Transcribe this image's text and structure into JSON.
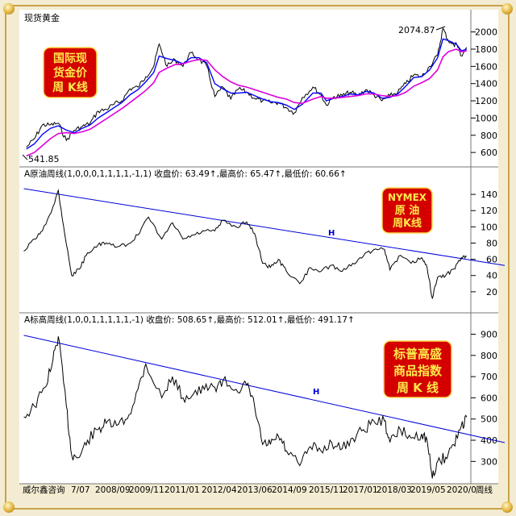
{
  "panels": [
    {
      "id": "gold",
      "header": "现货黄金",
      "badge_lines": [
        "国际现",
        "货金价",
        "周 K线"
      ],
      "badge_bg": "#d40000",
      "y_ticks": [
        600,
        800,
        1000,
        1200,
        1400,
        1600,
        1800,
        2000
      ],
      "ylim": [
        470,
        2090
      ],
      "high_label": "2074.87",
      "low_label": "541.85",
      "colors": {
        "price": "#000000",
        "ma_short": "#0000ff",
        "ma_long": "#dd00dd"
      }
    },
    {
      "id": "crude",
      "header": "A原油周线(1,0,0,0,1,1,1,1,-1,1) 收盘价: 63.49↑,最高价: 65.47↑,最低价: 60.66↑",
      "badge_lines": [
        "NYMEX",
        "原 油",
        "周K线"
      ],
      "badge_bg": "#d40000",
      "y_ticks": [
        20,
        40,
        60,
        80,
        100,
        120,
        140
      ],
      "ylim": [
        0,
        155
      ],
      "trend_label": "H",
      "colors": {
        "price": "#000000",
        "trend": "#0000dd"
      }
    },
    {
      "id": "gsci",
      "header": "A标高周线(1,0,0,1,1,1,1,1,-1) 收盘价: 508.65↑,最高价: 512.01↑,最低价: 491.17↑",
      "badge_lines": [
        "标普高盛",
        "商品指数",
        "周  K 线"
      ],
      "badge_bg": "#d40000",
      "y_ticks": [
        300,
        400,
        500,
        600,
        700,
        800,
        900
      ],
      "ylim": [
        210,
        940
      ],
      "trend_label": "H",
      "colors": {
        "price": "#000000",
        "trend": "#0000dd"
      }
    }
  ],
  "footer": {
    "source": "威尔鑫咨询",
    "x_labels": [
      "7/07",
      "2008/09",
      "2009/11",
      "2011/01",
      "2012/04",
      "2013/06",
      "2014/09",
      "2015/11",
      "2017/01",
      "2018/03",
      "2019/05",
      "2020/0",
      "周线"
    ]
  },
  "chart_data": [
    {
      "type": "line",
      "title": "现货黄金",
      "series": [],
      "x": [
        "2007-07",
        "2007-10",
        "2008-01",
        "2008-04",
        "2008-07",
        "2008-10",
        "2009-01",
        "2009-04",
        "2009-07",
        "2009-10",
        "2010-01",
        "2010-04",
        "2010-07",
        "2010-10",
        "2011-01",
        "2011-04",
        "2011-07",
        "2011-09",
        "2011-12",
        "2012-03",
        "2012-06",
        "2012-09",
        "2012-12",
        "2013-03",
        "2013-06",
        "2013-09",
        "2013-12",
        "2014-03",
        "2014-06",
        "2014-09",
        "2014-12",
        "2015-03",
        "2015-06",
        "2015-09",
        "2015-12",
        "2016-03",
        "2016-07",
        "2016-10",
        "2016-12",
        "2017-03",
        "2017-06",
        "2017-09",
        "2017-12",
        "2018-03",
        "2018-06",
        "2018-09",
        "2018-12",
        "2019-03",
        "2019-06",
        "2019-09",
        "2019-12",
        "2020-03",
        "2020-06",
        "2020-08",
        "2020-10",
        "2020-12",
        "2021-01",
        "2021-03",
        "2021-05"
      ],
      "price": [
        660,
        760,
        920,
        920,
        940,
        740,
        860,
        900,
        940,
        1080,
        1100,
        1160,
        1200,
        1340,
        1360,
        1480,
        1600,
        1860,
        1600,
        1680,
        1600,
        1760,
        1680,
        1600,
        1250,
        1360,
        1220,
        1340,
        1300,
        1230,
        1200,
        1180,
        1180,
        1120,
        1060,
        1240,
        1360,
        1270,
        1150,
        1250,
        1260,
        1300,
        1260,
        1330,
        1270,
        1200,
        1260,
        1300,
        1400,
        1500,
        1480,
        1600,
        1730,
        2040,
        1900,
        1850,
        1870,
        1720,
        1820
      ],
      "ma_short": [
        640,
        700,
        810,
        880,
        910,
        860,
        830,
        880,
        920,
        1000,
        1060,
        1120,
        1180,
        1270,
        1330,
        1420,
        1530,
        1720,
        1690,
        1670,
        1630,
        1700,
        1700,
        1640,
        1400,
        1340,
        1290,
        1290,
        1300,
        1260,
        1220,
        1190,
        1180,
        1150,
        1100,
        1160,
        1290,
        1290,
        1200,
        1230,
        1250,
        1280,
        1270,
        1310,
        1290,
        1230,
        1240,
        1280,
        1370,
        1470,
        1480,
        1560,
        1700,
        1920,
        1900,
        1870,
        1860,
        1780,
        1800
      ],
      "ma_long": [
        560,
        600,
        680,
        760,
        820,
        830,
        820,
        840,
        870,
        930,
        990,
        1050,
        1110,
        1180,
        1250,
        1320,
        1410,
        1530,
        1580,
        1620,
        1630,
        1660,
        1680,
        1670,
        1560,
        1480,
        1420,
        1380,
        1360,
        1330,
        1300,
        1270,
        1240,
        1220,
        1180,
        1170,
        1220,
        1250,
        1230,
        1230,
        1240,
        1250,
        1260,
        1280,
        1280,
        1260,
        1250,
        1260,
        1300,
        1370,
        1410,
        1460,
        1560,
        1710,
        1770,
        1790,
        1800,
        1770,
        1780
      ],
      "ylim": [
        470,
        2090
      ],
      "annotations": [
        "2074.87",
        "541.85"
      ]
    },
    {
      "type": "line",
      "title": "A原油周线",
      "series": [],
      "x": [
        "2007-06",
        "2007-10",
        "2008-01",
        "2008-05",
        "2008-07",
        "2008-09",
        "2008-12",
        "2009-03",
        "2009-06",
        "2009-10",
        "2010-01",
        "2010-05",
        "2010-09",
        "2011-01",
        "2011-05",
        "2011-10",
        "2012-02",
        "2012-06",
        "2012-10",
        "2013-02",
        "2013-06",
        "2013-09",
        "2014-02",
        "2014-06",
        "2014-09",
        "2014-12",
        "2015-03",
        "2015-06",
        "2015-09",
        "2016-02",
        "2016-06",
        "2016-10",
        "2017-02",
        "2017-06",
        "2017-10",
        "2018-02",
        "2018-06",
        "2018-10",
        "2018-12",
        "2019-04",
        "2019-08",
        "2019-12",
        "2020-02",
        "2020-04",
        "2020-06",
        "2020-09",
        "2020-12",
        "2021-03",
        "2021-05"
      ],
      "price": [
        70,
        85,
        95,
        125,
        145,
        100,
        40,
        48,
        68,
        78,
        80,
        75,
        78,
        90,
        112,
        85,
        105,
        85,
        90,
        95,
        95,
        108,
        100,
        106,
        92,
        55,
        50,
        60,
        45,
        30,
        50,
        45,
        53,
        45,
        55,
        64,
        72,
        72,
        47,
        65,
        55,
        62,
        50,
        12,
        38,
        40,
        48,
        62,
        63.49
      ],
      "trend": {
        "x": [
          "2007-06",
          "2021-05"
        ],
        "y": [
          147,
          58
        ]
      },
      "ylim": [
        0,
        155
      ]
    },
    {
      "type": "line",
      "title": "A标高周线",
      "series": [],
      "x": [
        "2007-06",
        "2007-10",
        "2008-02",
        "2008-05",
        "2008-07",
        "2008-10",
        "2008-12",
        "2009-03",
        "2009-06",
        "2009-10",
        "2010-01",
        "2010-05",
        "2010-09",
        "2011-01",
        "2011-04",
        "2011-10",
        "2012-02",
        "2012-06",
        "2012-10",
        "2013-02",
        "2013-06",
        "2013-09",
        "2014-02",
        "2014-06",
        "2014-09",
        "2014-12",
        "2015-03",
        "2015-06",
        "2015-09",
        "2016-02",
        "2016-06",
        "2016-10",
        "2017-02",
        "2017-06",
        "2017-10",
        "2018-02",
        "2018-06",
        "2018-10",
        "2018-12",
        "2019-04",
        "2019-08",
        "2019-12",
        "2020-02",
        "2020-04",
        "2020-06",
        "2020-09",
        "2020-12",
        "2021-03",
        "2021-05"
      ],
      "price": [
        510,
        560,
        650,
        780,
        890,
        560,
        330,
        320,
        400,
        450,
        480,
        470,
        500,
        640,
        760,
        600,
        700,
        600,
        620,
        640,
        650,
        680,
        640,
        660,
        560,
        380,
        380,
        420,
        350,
        280,
        370,
        350,
        390,
        360,
        410,
        450,
        490,
        490,
        390,
        450,
        410,
        430,
        400,
        220,
        300,
        320,
        380,
        470,
        508.65
      ],
      "trend": {
        "x": [
          "2007-06",
          "2021-05"
        ],
        "y": [
          895,
          410
        ]
      },
      "ylim": [
        210,
        940
      ]
    }
  ]
}
